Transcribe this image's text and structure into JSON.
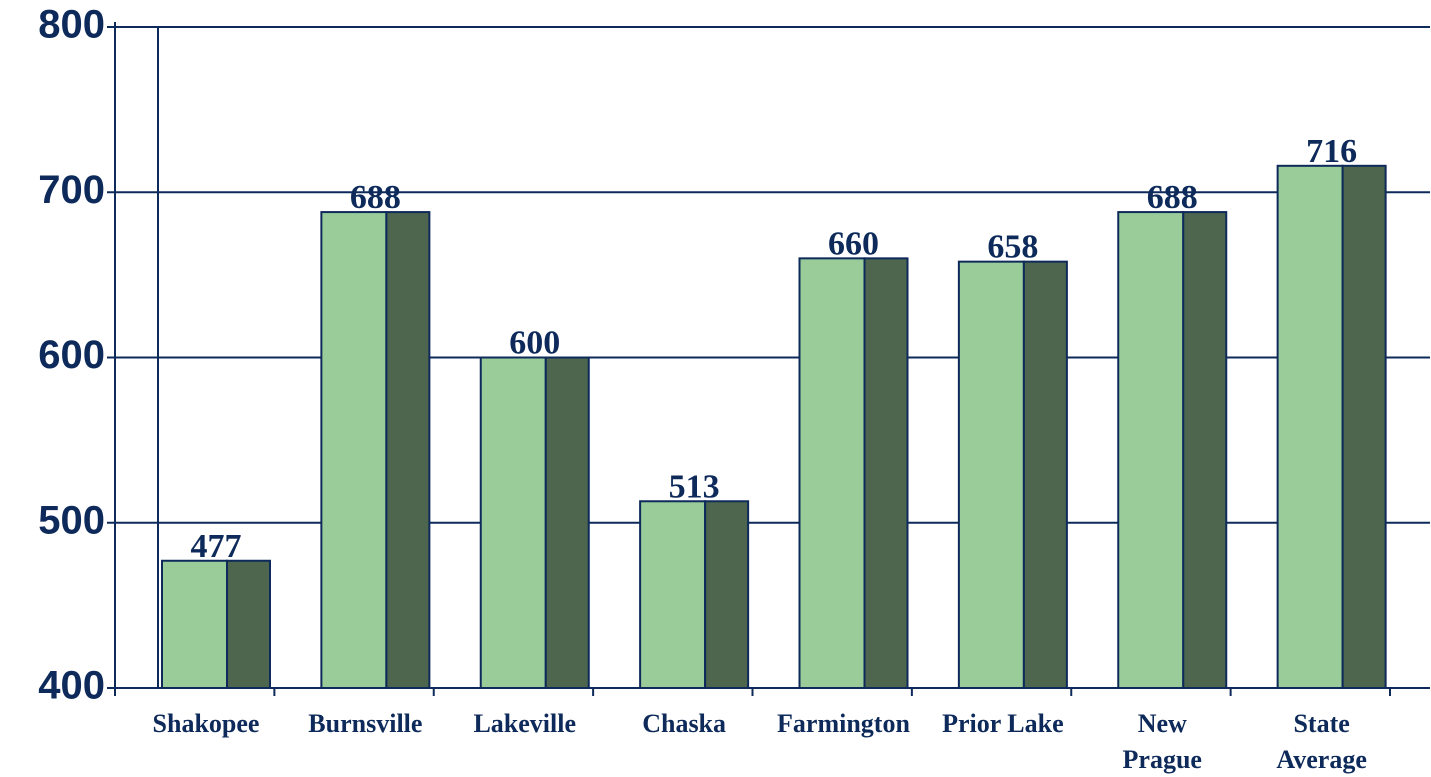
{
  "chart_data": {
    "type": "bar",
    "categories": [
      "Shakopee",
      "Burnsville",
      "Lakeville",
      "Chaska",
      "Farmington",
      "Prior Lake",
      "New\nPrague",
      "State\nAverage"
    ],
    "values": [
      477,
      688,
      600,
      513,
      660,
      658,
      688,
      716
    ],
    "color": "#99cc99",
    "side_color": "#4d664d",
    "ylim": [
      400,
      800
    ],
    "yticks": [
      400,
      500,
      600,
      700,
      800
    ],
    "grid": true
  }
}
